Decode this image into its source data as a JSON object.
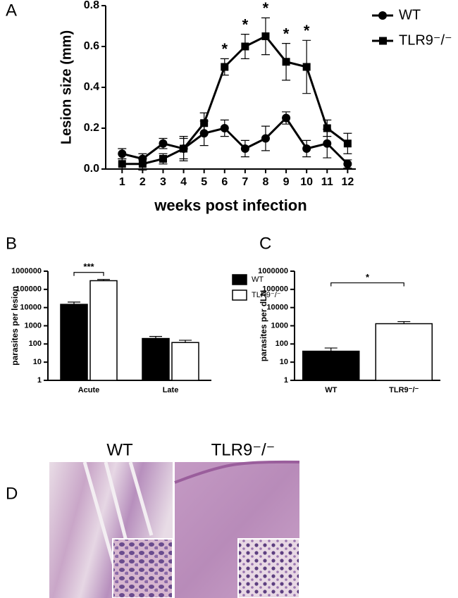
{
  "panels": [
    "A",
    "B",
    "C",
    "D"
  ],
  "chart_data": [
    {
      "type": "line",
      "y_label": "Lesion size (mm)",
      "x_label": "weeks post infection",
      "x": [
        1,
        2,
        3,
        4,
        5,
        6,
        7,
        8,
        9,
        10,
        11,
        12
      ],
      "xlim": [
        0.2,
        12.4
      ],
      "xticks": [
        1,
        2,
        3,
        4,
        5,
        6,
        7,
        8,
        9,
        10,
        11,
        12
      ],
      "ylim": [
        0,
        0.8
      ],
      "yticks": [
        {
          "value": 0,
          "label": "0.0"
        },
        0.2,
        0.4,
        0.6,
        0.8
      ],
      "legend": "right",
      "series": [
        {
          "name": "WT",
          "color": "#000000",
          "marker": "circle",
          "values": [
            0.075,
            0.05,
            0.125,
            0.1,
            0.175,
            0.2,
            0.1,
            0.15,
            0.25,
            0.1,
            0.125,
            0.025
          ],
          "errors": [
            0.025,
            0.025,
            0.025,
            0.05,
            0.06,
            0.04,
            0.04,
            0.06,
            0.03,
            0.04,
            0.07,
            0.02
          ]
        },
        {
          "name": "TLR9⁻/⁻",
          "color": "#000000",
          "marker": "square",
          "values": [
            0.025,
            0.025,
            0.05,
            0.1,
            0.225,
            0.5,
            0.6,
            0.65,
            0.525,
            0.5,
            0.2,
            0.125
          ],
          "errors": [
            0.025,
            0.03,
            0.025,
            0.06,
            0.05,
            0.04,
            0.06,
            0.09,
            0.09,
            0.13,
            0.04,
            0.05
          ]
        }
      ],
      "significance": [
        {
          "label": "*",
          "x": 6
        },
        {
          "label": "*",
          "x": 7
        },
        {
          "label": "*",
          "x": 8
        },
        {
          "label": "*",
          "x": 9
        },
        {
          "label": "*",
          "x": 10
        }
      ]
    },
    {
      "type": "bar",
      "y_label": "parasites per lesion",
      "log_scale": true,
      "categories": [
        "Acute",
        "Late"
      ],
      "ylim": [
        1,
        1000000
      ],
      "yticks": [
        1,
        10,
        100,
        1000,
        10000,
        100000,
        1000000
      ],
      "legend": "right",
      "series": [
        {
          "name": "WT",
          "color": "#000000",
          "values": [
            15000,
            200
          ],
          "errors": [
            5000,
            60
          ]
        },
        {
          "name": "TLR9⁻/⁻",
          "color": "#ffffff",
          "values": [
            300000,
            120
          ],
          "errors": [
            50000,
            40
          ]
        }
      ],
      "significance": {
        "label": "***",
        "category": "Acute"
      }
    },
    {
      "type": "bar",
      "y_label": "parasites per dLN",
      "log_scale": true,
      "categories": [
        "WT",
        "TLR9⁻/⁻"
      ],
      "ylim": [
        1,
        1000000
      ],
      "yticks": [
        1,
        10,
        100,
        1000,
        10000,
        100000,
        1000000
      ],
      "colors": [
        "#000000",
        "#ffffff"
      ],
      "values": [
        40,
        1300
      ],
      "errors": [
        20,
        400
      ],
      "significance": {
        "label": "*"
      }
    }
  ],
  "histology": {
    "labels": [
      "WT",
      "TLR9⁻/⁻"
    ]
  }
}
